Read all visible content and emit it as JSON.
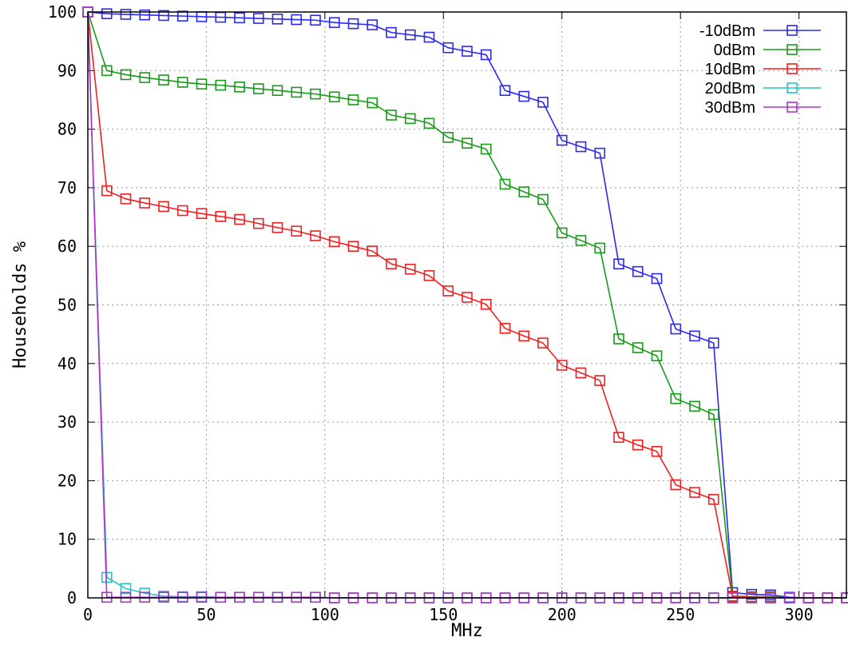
{
  "chart_data": {
    "type": "line",
    "xlabel": "MHz",
    "ylabel": "Households %",
    "xlim": [
      0,
      320
    ],
    "ylim": [
      0,
      100
    ],
    "xticks": [
      0,
      50,
      100,
      150,
      200,
      250,
      300
    ],
    "yticks": [
      0,
      10,
      20,
      30,
      40,
      50,
      60,
      70,
      80,
      90,
      100
    ],
    "grid": true,
    "legend_position": "top-right",
    "x": [
      0,
      8,
      16,
      24,
      32,
      40,
      48,
      56,
      64,
      72,
      80,
      88,
      96,
      104,
      112,
      120,
      128,
      136,
      144,
      152,
      160,
      168,
      176,
      184,
      192,
      200,
      208,
      216,
      224,
      232,
      240,
      248,
      256,
      264,
      272,
      280,
      288,
      296,
      304,
      312,
      320
    ],
    "series": [
      {
        "name": "-10dBm",
        "color": "#2a2aee",
        "values": [
          100,
          99.7,
          99.6,
          99.5,
          99.4,
          99.3,
          99.2,
          99.1,
          99.0,
          98.9,
          98.8,
          98.7,
          98.6,
          98.2,
          98.0,
          97.8,
          96.5,
          96.1,
          95.7,
          93.9,
          93.3,
          92.7,
          86.6,
          85.6,
          84.6,
          78.1,
          77.0,
          75.9,
          57.0,
          55.7,
          54.5,
          45.9,
          44.7,
          43.5,
          0.9,
          0.6,
          0.5,
          0.1,
          0.0,
          0.0,
          0.0
        ]
      },
      {
        "name": "0dBm",
        "color": "#1a9a1a",
        "values": [
          100,
          90.0,
          89.3,
          88.8,
          88.4,
          88.0,
          87.7,
          87.5,
          87.2,
          86.9,
          86.6,
          86.3,
          86.0,
          85.5,
          85.0,
          84.5,
          82.4,
          81.8,
          81.0,
          78.6,
          77.6,
          76.6,
          70.6,
          69.3,
          68.0,
          62.3,
          61.0,
          59.7,
          44.2,
          42.7,
          41.3,
          34.0,
          32.7,
          31.3,
          0.3,
          0.2,
          0.2,
          0.0,
          0.0,
          0.0,
          0.0
        ]
      },
      {
        "name": "10dBm",
        "color": "#ee2020",
        "values": [
          100,
          69.5,
          68.1,
          67.4,
          66.8,
          66.1,
          65.6,
          65.1,
          64.6,
          63.9,
          63.2,
          62.6,
          61.8,
          60.8,
          60.0,
          59.2,
          57.0,
          56.1,
          55.0,
          52.4,
          51.3,
          50.1,
          46.0,
          44.7,
          43.5,
          39.7,
          38.4,
          37.1,
          27.4,
          26.1,
          25.0,
          19.3,
          18.0,
          16.8,
          0.2,
          0.1,
          0.1,
          0.0,
          0.0,
          0.0,
          0.0
        ]
      },
      {
        "name": "20dBm",
        "color": "#22c4c4",
        "values": [
          100,
          3.5,
          1.6,
          0.8,
          0.3,
          0.2,
          0.2,
          0.1,
          0.1,
          0.1,
          0.1,
          0.1,
          0.1,
          0.0,
          0.0,
          0.0,
          0.0,
          0.0,
          0.0,
          0.0,
          0.0,
          0.0,
          0.0,
          0.0,
          0.0,
          0.0,
          0.0,
          0.0,
          0.0,
          0.0,
          0.0,
          0.0,
          0.0,
          0.0,
          0.0,
          0.0,
          0.0,
          0.0,
          0.0,
          0.0,
          0.0
        ]
      },
      {
        "name": "30dBm",
        "color": "#b030c8",
        "values": [
          100,
          0.1,
          0.1,
          0.1,
          0.1,
          0.1,
          0.1,
          0.1,
          0.1,
          0.1,
          0.1,
          0.1,
          0.1,
          0.0,
          0.0,
          0.0,
          0.0,
          0.0,
          0.0,
          0.0,
          0.0,
          0.0,
          0.0,
          0.0,
          0.0,
          0.0,
          0.0,
          0.0,
          0.0,
          0.0,
          0.0,
          0.0,
          0.0,
          0.0,
          0.0,
          0.0,
          0.0,
          0.0,
          0.0,
          0.0,
          0.0
        ]
      }
    ]
  }
}
